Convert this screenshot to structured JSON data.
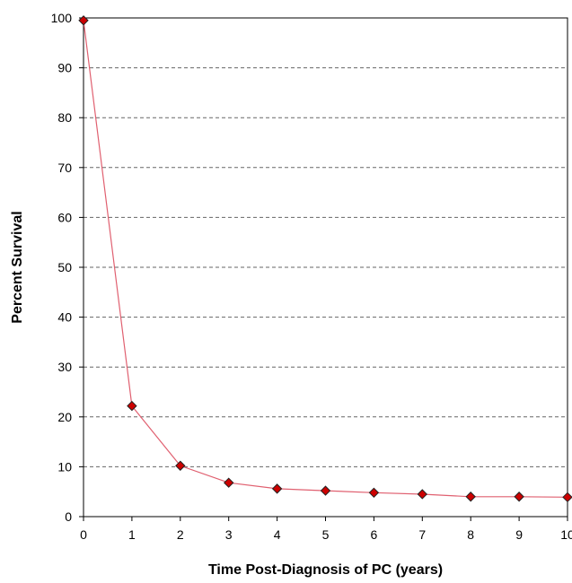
{
  "chart_data": {
    "type": "line",
    "title": "",
    "xlabel": "Time Post-Diagnosis of PC (years)",
    "ylabel": "Percent Survival",
    "x": [
      0,
      1,
      2,
      3,
      4,
      5,
      6,
      7,
      8,
      9,
      10
    ],
    "series": [
      {
        "values": [
          99.5,
          22.2,
          10.2,
          6.8,
          5.6,
          5.2,
          4.8,
          4.5,
          4.0,
          4.0,
          3.9
        ]
      }
    ],
    "xlim": [
      0,
      10
    ],
    "ylim": [
      0,
      100
    ],
    "xticks": [
      "0",
      "1",
      "2",
      "3",
      "4",
      "5",
      "6",
      "7",
      "8",
      "9",
      "10"
    ],
    "yticks": [
      "0",
      "10",
      "20",
      "30",
      "40",
      "50",
      "60",
      "70",
      "80",
      "90",
      "100"
    ],
    "grid": "horizontal dashed",
    "legend": "none",
    "colors": {
      "line": "#e06070",
      "marker_fill": "#cc0000",
      "marker_stroke": "#222222",
      "grid": "#666666",
      "axis": "#000000"
    }
  }
}
